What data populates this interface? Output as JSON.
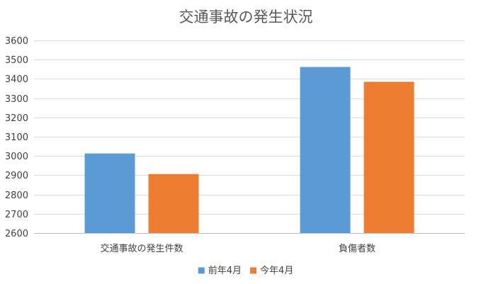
{
  "chart_data": {
    "type": "bar",
    "title": "交通事故の発生状況",
    "categories": [
      "交通事故の発生件数",
      "負傷者数"
    ],
    "series": [
      {
        "name": "前年4月",
        "color": "#5B9BD5",
        "values": [
          3013,
          3462
        ]
      },
      {
        "name": "今年4月",
        "color": "#ED7D31",
        "values": [
          2906,
          3385
        ]
      }
    ],
    "ylim": [
      2600,
      3600
    ],
    "yticks": [
      2600,
      2700,
      2800,
      2900,
      3000,
      3100,
      3200,
      3300,
      3400,
      3500,
      3600
    ],
    "xlabel": "",
    "ylabel": "",
    "grid": true,
    "legend_position": "bottom"
  }
}
